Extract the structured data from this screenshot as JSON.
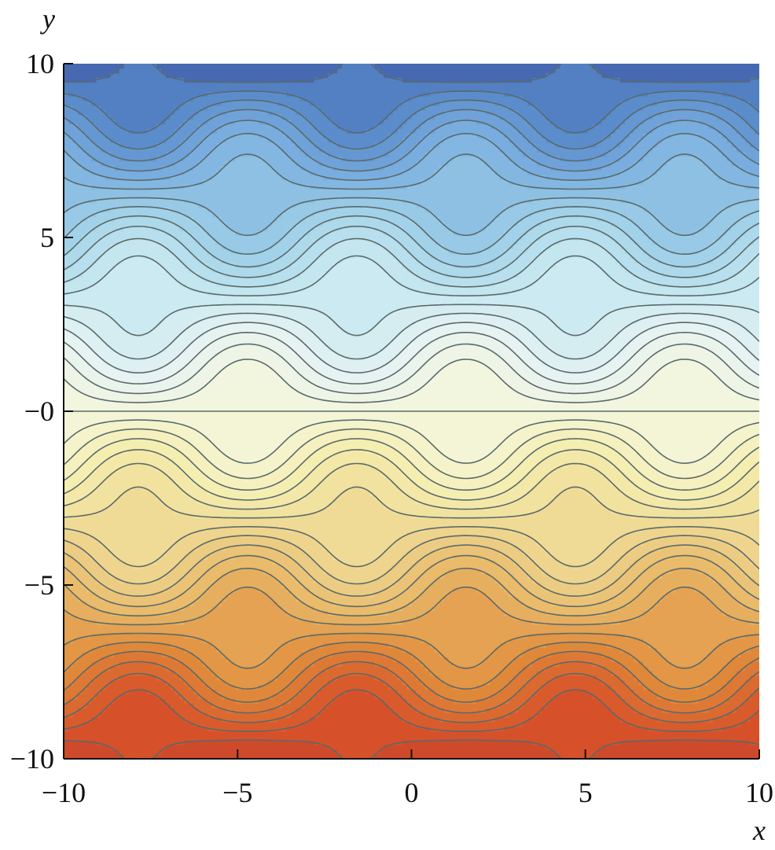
{
  "chart_data": {
    "type": "contour",
    "function": "y - sin(x) * sin(y)",
    "xlabel": "x",
    "ylabel": "y",
    "xlim": [
      -10,
      10
    ],
    "ylim": [
      -10,
      10
    ],
    "xticks": [
      -10,
      -5,
      0,
      5,
      10
    ],
    "xtick_labels": [
      "−10",
      "−5",
      "0",
      "5",
      "10"
    ],
    "yticks": [
      10,
      5,
      0,
      -5,
      -10
    ],
    "ytick_labels": [
      "10",
      "5",
      "−0",
      "−5",
      "−10"
    ],
    "contour_levels": [
      -9.5,
      -9,
      -8.5,
      -8,
      -7.5,
      -7,
      -6.5,
      -6,
      -5.5,
      -5,
      -4.5,
      -4,
      -3.5,
      -3,
      -2.5,
      -2,
      -1.5,
      -1,
      -0.5,
      0,
      0.5,
      1,
      1.5,
      2,
      2.5,
      3,
      3.5,
      4,
      4.5,
      5,
      5.5,
      6,
      6.5,
      7,
      7.5,
      8,
      8.5,
      9,
      9.5
    ],
    "colormap": [
      "#c8452a",
      "#d8532a",
      "#e08a3a",
      "#e8b868",
      "#efd790",
      "#f5eeb0",
      "#f4f6dc",
      "#e6f3f3",
      "#c6e8f0",
      "#9fd0e8",
      "#7aaee0",
      "#5687c8",
      "#3f58a6"
    ],
    "line_color": "#5a6a6a",
    "grid": false
  }
}
